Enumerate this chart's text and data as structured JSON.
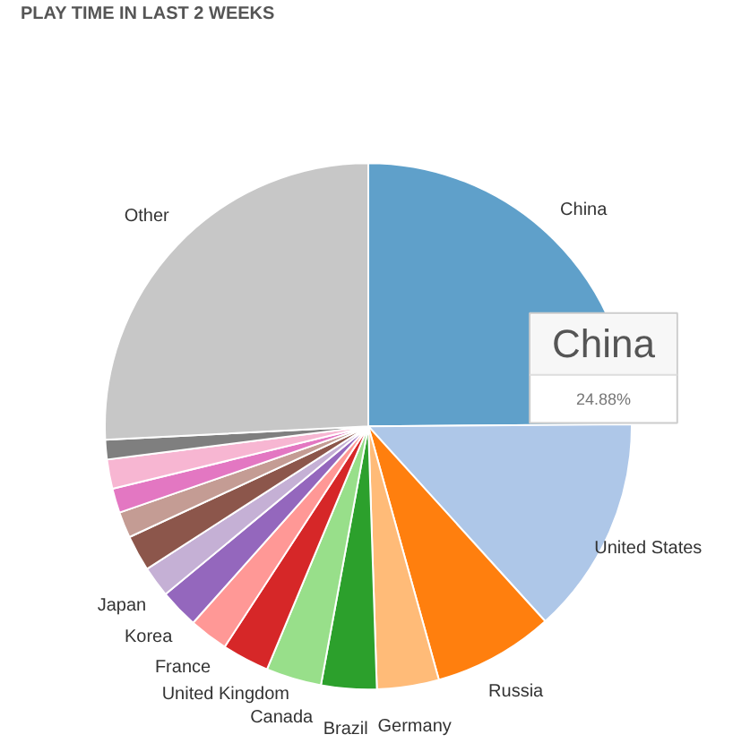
{
  "chart_data": {
    "type": "pie",
    "title": "PLAY TIME IN LAST 2 WEEKS",
    "categories": [
      "China",
      "United States",
      "Russia",
      "Germany",
      "Brazil",
      "Canada",
      "United Kingdom",
      "France",
      "Korea",
      "Japan",
      null,
      null,
      null,
      null,
      null,
      "Other"
    ],
    "values": [
      24.88,
      13.4,
      7.4,
      3.8,
      3.4,
      3.4,
      2.9,
      2.4,
      2.4,
      1.9,
      2.2,
      1.6,
      1.5,
      1.8,
      1.2,
      25.82
    ],
    "colors": [
      "#5fa0ca",
      "#aec7e8",
      "#ff7f0e",
      "#ffbb78",
      "#2ca02c",
      "#98df8a",
      "#d62728",
      "#ff9896",
      "#9467bd",
      "#c5b0d5",
      "#8c564b",
      "#c49c94",
      "#e377c2",
      "#f7b6d2",
      "#7f7f7f",
      "#c7c7c7"
    ],
    "value_labels": [
      "24.88%",
      null,
      null,
      null,
      null,
      null,
      null,
      null,
      null,
      null,
      null,
      null,
      null,
      null,
      null,
      null
    ]
  }
}
